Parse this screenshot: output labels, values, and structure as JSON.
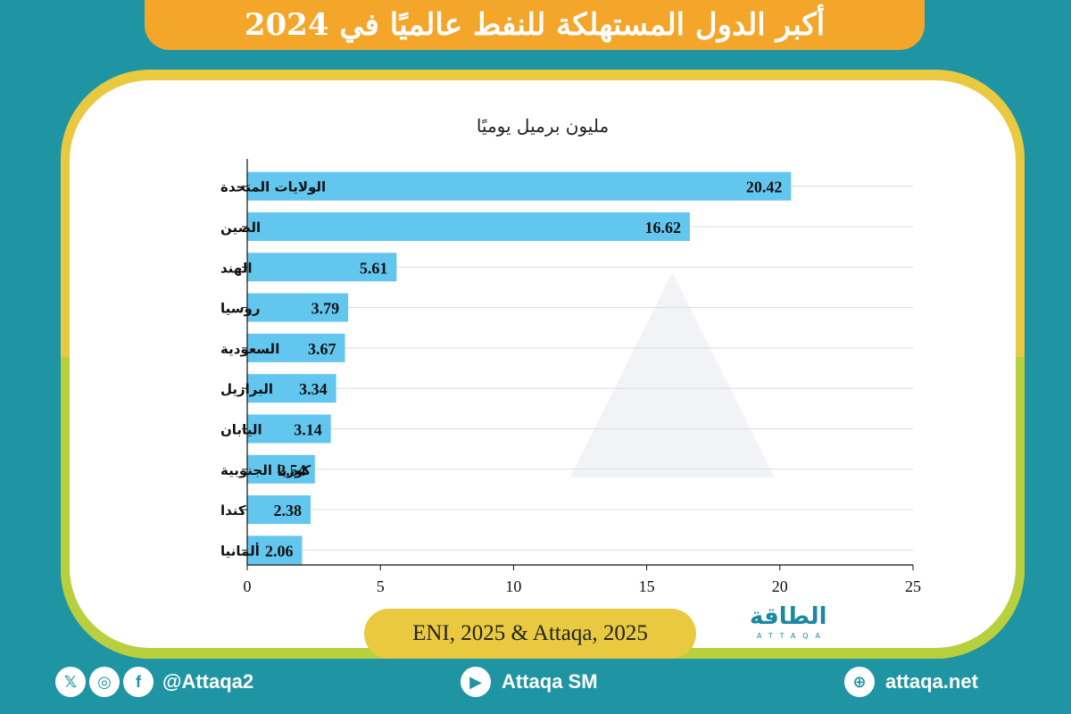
{
  "header": {
    "title": "أكبر الدول المستهلكة للنفط عالميًا في 2024"
  },
  "chart_data": {
    "type": "bar",
    "orientation": "horizontal",
    "subtitle": "مليون برميل يوميًا",
    "categories": [
      "الولايات المتحدة",
      "الصين",
      "الهند",
      "روسيا",
      "السعودية",
      "البرازيل",
      "اليابان",
      "كوريا الجنوبية",
      "كندا",
      "ألمانيا"
    ],
    "values": [
      20.42,
      16.62,
      5.61,
      3.79,
      3.67,
      3.34,
      3.14,
      2.54,
      2.38,
      2.06
    ],
    "value_labels": [
      "20.42",
      "16.62",
      "5.61",
      "3.79",
      "3.67",
      "3.34",
      "3.14",
      "2.54",
      "2.38",
      "2.06"
    ],
    "xlim": [
      0,
      25
    ],
    "xticks": [
      "0",
      "5",
      "10",
      "15",
      "20",
      "25"
    ],
    "xticks_values": [
      0,
      5,
      10,
      15,
      20,
      25
    ],
    "grid": true,
    "bar_color": "#62c6ef"
  },
  "source": {
    "text": "ENI, 2025 & Attaqa, 2025"
  },
  "logo": {
    "text": "الطاقة",
    "sub": "ATTAQA"
  },
  "footer": {
    "social_handle": "@Attaqa2",
    "youtube": "Attaqa SM",
    "website": "attaqa.net",
    "icons": [
      "x-icon",
      "instagram-icon",
      "facebook-icon",
      "youtube-icon",
      "globe-icon"
    ]
  }
}
